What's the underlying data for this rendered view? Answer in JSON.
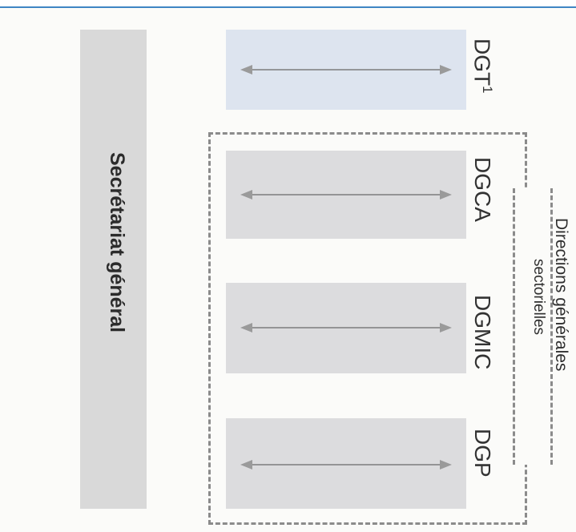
{
  "sg_label": "Secrétariat général",
  "directions": [
    {
      "label": "DGT",
      "sup": "1"
    },
    {
      "label": "DGCA",
      "sup": ""
    },
    {
      "label": "DGMIC",
      "sup": ""
    },
    {
      "label": "DGP",
      "sup": ""
    }
  ],
  "group": {
    "title": "Directions générales",
    "subtitle": "sectorielles"
  },
  "colors": {
    "accent_rule": "#3f86c4",
    "dgt_box": "#dde4ef",
    "box": "#dcdcde",
    "sg_box": "#d9d9d9",
    "dashed": "#8b8b8b"
  }
}
